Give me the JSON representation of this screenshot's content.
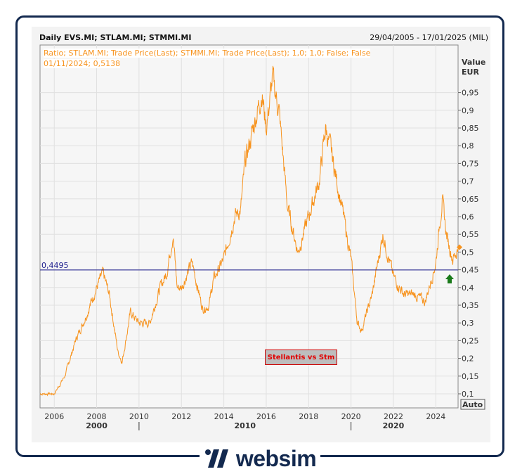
{
  "header": {
    "title": "Daily EVS.MI; STLAM.MI; STMMI.MI",
    "date_range": "29/04/2005 - 17/01/2025 (MIL)"
  },
  "legend": {
    "line1": "Ratio; STLAM.MI; Trade Price(Last); STMMI.MI; Trade Price(Last);  1,0; 1,0; False; False",
    "line2": "01/11/2024; 0,5138"
  },
  "annotation": "Stellantis vs Stm",
  "auto_label": "Auto",
  "brand": "websim",
  "colors": {
    "series": "#f7931e",
    "hline": "#1a1a8c",
    "arrow": "#1a7a1a",
    "frame": "#13294f"
  },
  "chart_data": {
    "type": "line",
    "title": "Daily EVS.MI; STLAM.MI; STMMI.MI",
    "ylabel": "Value\nEUR",
    "ylabel_lines": [
      "Value",
      "EUR"
    ],
    "ylim": [
      0.085,
      1.0
    ],
    "xlim": [
      2005.33,
      2025.05
    ],
    "yticks": [
      0.1,
      0.15,
      0.2,
      0.25,
      0.3,
      0.35,
      0.4,
      0.45,
      0.5,
      0.55,
      0.6,
      0.65,
      0.7,
      0.75,
      0.8,
      0.85,
      0.9,
      0.95
    ],
    "ytick_labels": [
      "0,1",
      "0,15",
      "0,2",
      "0,25",
      "0,3",
      "0,35",
      "0,4",
      "0,45",
      "0,5",
      "0,55",
      "0,6",
      "0,65",
      "0,7",
      "0,75",
      "0,8",
      "0,85",
      "0,9",
      "0,95"
    ],
    "xticks": [
      2006,
      2008,
      2010,
      2012,
      2014,
      2016,
      2018,
      2020,
      2022,
      2024
    ],
    "xtick_labels": [
      "2006",
      "2008",
      "2010",
      "2012",
      "2014",
      "2016",
      "2018",
      "2020",
      "2022",
      "2024"
    ],
    "decades": [
      {
        "label": "2000",
        "x": 2008
      },
      {
        "label": "2010",
        "x": 2015
      },
      {
        "label": "2020",
        "x": 2022
      }
    ],
    "decade_separators": [
      2010,
      2020
    ],
    "hline": {
      "value": 0.4495,
      "label": "0,4495"
    },
    "last_value": 0.5138,
    "grid": true,
    "series": [
      {
        "name": "Ratio STLAM.MI / STMMI.MI",
        "x": [
          2005.33,
          2006,
          2006.5,
          2007,
          2007.5,
          2008,
          2008.3,
          2008.6,
          2009,
          2009.2,
          2009.6,
          2010,
          2010.5,
          2011,
          2011.3,
          2011.6,
          2011.8,
          2012,
          2012.5,
          2013,
          2013.3,
          2013.5,
          2014,
          2014.5,
          2014.8,
          2015,
          2015.5,
          2015.8,
          2016,
          2016.3,
          2016.6,
          2017,
          2017.3,
          2017.5,
          2018,
          2018.5,
          2018.8,
          2019,
          2019.5,
          2020,
          2020.3,
          2020.5,
          2021,
          2021.5,
          2022,
          2022.5,
          2023,
          2023.5,
          2024,
          2024.3,
          2024.5,
          2024.8,
          2025.05
        ],
        "y": [
          0.1,
          0.1,
          0.15,
          0.25,
          0.32,
          0.4,
          0.44,
          0.38,
          0.22,
          0.19,
          0.33,
          0.3,
          0.3,
          0.4,
          0.44,
          0.55,
          0.4,
          0.4,
          0.47,
          0.34,
          0.35,
          0.42,
          0.48,
          0.6,
          0.62,
          0.75,
          0.88,
          0.95,
          0.85,
          0.99,
          0.9,
          0.63,
          0.55,
          0.5,
          0.6,
          0.7,
          0.85,
          0.8,
          0.65,
          0.48,
          0.3,
          0.28,
          0.38,
          0.55,
          0.43,
          0.38,
          0.38,
          0.36,
          0.47,
          0.65,
          0.55,
          0.48,
          0.51
        ]
      }
    ]
  }
}
